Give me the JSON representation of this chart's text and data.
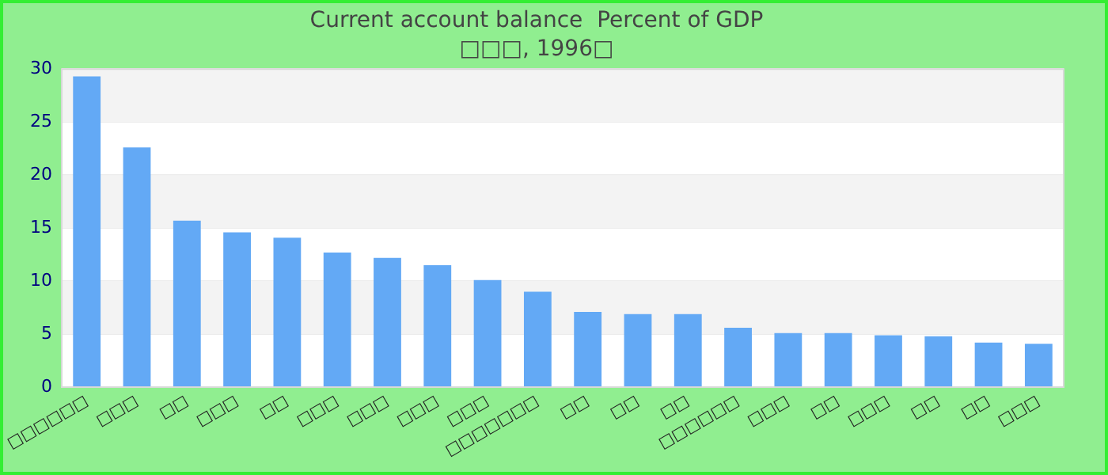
{
  "chart_data": {
    "type": "bar",
    "title": "Current account balance  Percent of GDP",
    "subtitle": "□□□, 1996□",
    "categories": [
      "□□□□□□",
      "□□□",
      "□□",
      "□□□",
      "□□",
      "□□□",
      "□□□",
      "□□□",
      "□□□",
      "□□□□□□□",
      "□□",
      "□□",
      "□□",
      "□□□□□□",
      "□□□",
      "□□",
      "□□□",
      "□□",
      "□□",
      "□□□"
    ],
    "values": [
      29.3,
      22.6,
      15.7,
      14.6,
      14.1,
      12.7,
      12.2,
      11.5,
      10.1,
      9.0,
      7.1,
      6.9,
      6.9,
      5.6,
      5.1,
      5.1,
      4.9,
      4.8,
      4.2,
      4.1
    ],
    "color": "#63a9f5",
    "ylim": [
      0,
      30
    ],
    "yticks": [
      0,
      5,
      10,
      15,
      20,
      25,
      30
    ],
    "grid": "y",
    "legend": false
  }
}
